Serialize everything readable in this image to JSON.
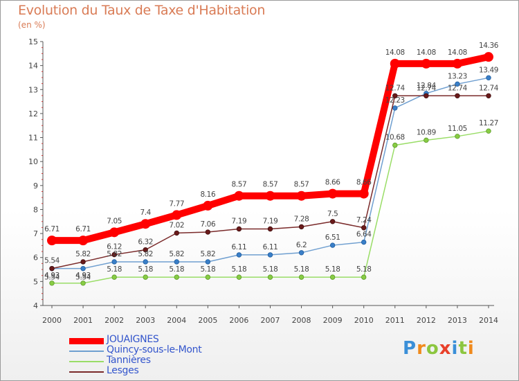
{
  "header": {
    "title": "Evolution du Taux de Taxe d'Habitation",
    "unit": "(en %)"
  },
  "logo": {
    "text": "Proxiti"
  },
  "chart_data": {
    "type": "line",
    "title": "Evolution du Taux de Taxe d'Habitation",
    "ylabel": "(en %)",
    "xlabel": "",
    "x": [
      "2000",
      "2001",
      "2002",
      "2003",
      "2004",
      "2005",
      "2006",
      "2007",
      "2008",
      "2009",
      "2010",
      "2011",
      "2012",
      "2013",
      "2014"
    ],
    "ylim": [
      4,
      15
    ],
    "yticks": [
      4,
      5,
      6,
      7,
      8,
      9,
      10,
      11,
      12,
      13,
      14,
      15
    ],
    "grid": false,
    "legend_position": "bottom-left",
    "series": [
      {
        "name": "JOUAIGNES",
        "color": "#ff0000",
        "values": [
          6.71,
          6.71,
          7.05,
          7.4,
          7.77,
          8.16,
          8.57,
          8.57,
          8.57,
          8.66,
          8.66,
          14.08,
          14.08,
          14.08,
          14.36
        ],
        "labels": [
          "6.71",
          "6.71",
          "7.05",
          "7.4",
          "7.77",
          "8.16",
          "8.57",
          "8.57",
          "8.57",
          "8.66",
          "8.66",
          "14.08",
          "14.08",
          "14.08",
          "14.36"
        ]
      },
      {
        "name": "Quincy-sous-le-Mont",
        "color": "#6f9fd0",
        "values": [
          5.54,
          5.54,
          5.82,
          5.82,
          5.82,
          5.82,
          6.11,
          6.11,
          6.2,
          6.51,
          6.64,
          12.23,
          12.84,
          13.23,
          13.49
        ],
        "labels": [
          "5.54",
          "5.54",
          "5.82",
          "5.82",
          "5.82",
          "5.82",
          "6.11",
          "6.11",
          "6.2",
          "6.51",
          "6.64",
          "12.23",
          "12.84",
          "13.23",
          "13.49"
        ]
      },
      {
        "name": "Tannières",
        "color": "#99dd66",
        "values": [
          4.93,
          4.93,
          5.18,
          5.18,
          5.18,
          5.18,
          5.18,
          5.18,
          5.18,
          5.18,
          5.18,
          10.68,
          10.89,
          11.05,
          11.27
        ],
        "labels": [
          "4.93",
          "4.93",
          "5.18",
          "5.18",
          "5.18",
          "5.18",
          "5.18",
          "5.18",
          "5.18",
          "5.18",
          "5.18",
          "10.68",
          "10.89",
          "11.05",
          "11.27"
        ]
      },
      {
        "name": "Lesges",
        "color": "#7a2a2a",
        "values": [
          5.54,
          5.82,
          6.12,
          6.32,
          7.02,
          7.06,
          7.19,
          7.19,
          7.28,
          7.5,
          7.24,
          12.74,
          12.74,
          12.74,
          12.74
        ],
        "labels": [
          "5.54",
          "5.82",
          "6.12",
          "6.32",
          "7.02",
          "7.06",
          "7.19",
          "7.19",
          "7.28",
          "7.5",
          "7.24",
          "12.74",
          "12.74",
          "12.74",
          "12.74"
        ]
      }
    ]
  }
}
